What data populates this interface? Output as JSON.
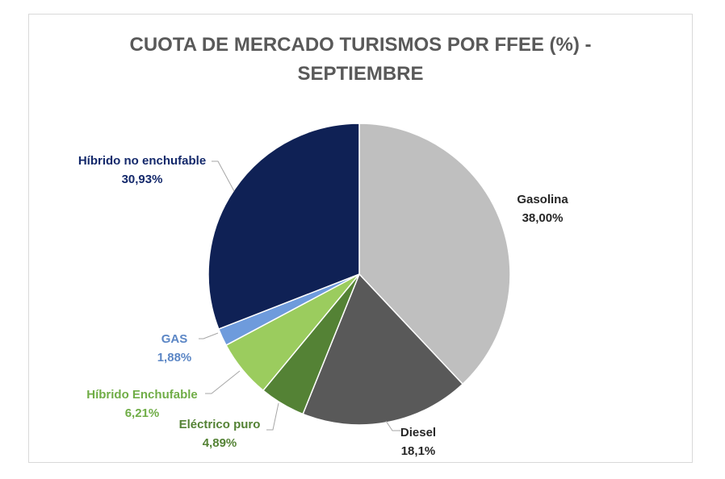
{
  "chart_data": {
    "type": "pie",
    "title_line1": "CUOTA DE MERCADO TURISMOS POR FFEE (%) -",
    "title_line2": "SEPTIEMBRE",
    "slices": [
      {
        "name": "Gasolina",
        "value": 38.0,
        "value_label": "38,00%",
        "color": "#bfbfbf",
        "label_color": "#262626"
      },
      {
        "name": "Diesel",
        "value": 18.1,
        "value_label": "18,1%",
        "color": "#595959",
        "label_color": "#262626"
      },
      {
        "name": "Eléctrico puro",
        "value": 4.89,
        "value_label": "4,89%",
        "color": "#548235",
        "label_color": "#548235"
      },
      {
        "name": "Híbrido Enchufable",
        "value": 6.21,
        "value_label": "6,21%",
        "color": "#9bcc5e",
        "label_color": "#70ad47"
      },
      {
        "name": "GAS",
        "value": 1.88,
        "value_label": "1,88%",
        "color": "#6e9bdc",
        "label_color": "#5b86c5"
      },
      {
        "name": "Híbrido no enchufable",
        "value": 30.93,
        "value_label": "30,93%",
        "color": "#0f2155",
        "label_color": "#14296b"
      }
    ],
    "start_angle_deg": 0,
    "direction": "clockwise",
    "legend": "none",
    "data_labels": "outside-with-leader-lines"
  }
}
